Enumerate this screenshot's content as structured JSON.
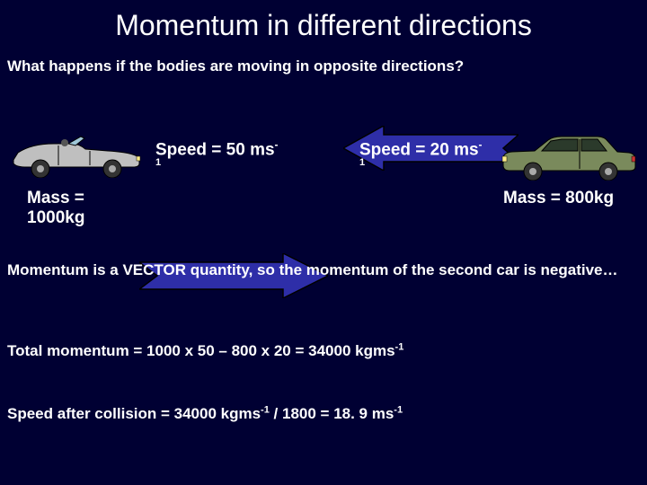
{
  "title": "Momentum in different directions",
  "subtitle": "What happens if the bodies are moving in opposite directions?",
  "car1": {
    "speed_label_html": "Speed = 50 ms<sup>-</sup>",
    "speed_sub": "1",
    "mass_label": "Mass =",
    "mass_value": "1000kg",
    "body_fill": "#bfbfbf",
    "outline": "#000000",
    "wheel_fill": "#333333"
  },
  "car2": {
    "speed_label_html": "Speed = 20 ms<sup>-</sup>",
    "speed_sub": "1",
    "mass_label": "Mass = 800kg",
    "body_fill": "#7a8a5c",
    "outline": "#000000",
    "window_fill": "#2b3a2b",
    "wheel_fill": "#333333"
  },
  "arrow": {
    "fill": "#2e2ea8",
    "stroke": "#000000"
  },
  "text_lines": {
    "vector_html": "Momentum is a VECTOR quantity, so the momentum of the second car is negative…",
    "total_html": "Total momentum = 1000 x 50 – 800 x 20 = 34000 kgms<sup class=\"exp\">-1</sup>",
    "speed_html": "Speed after collision = 34000 kgms<sup class=\"exp\">-1</sup> / 1800 = 18. 9 ms<sup class=\"exp\">-1</sup>"
  },
  "colors": {
    "background": "#000033",
    "text": "#ffffff"
  }
}
